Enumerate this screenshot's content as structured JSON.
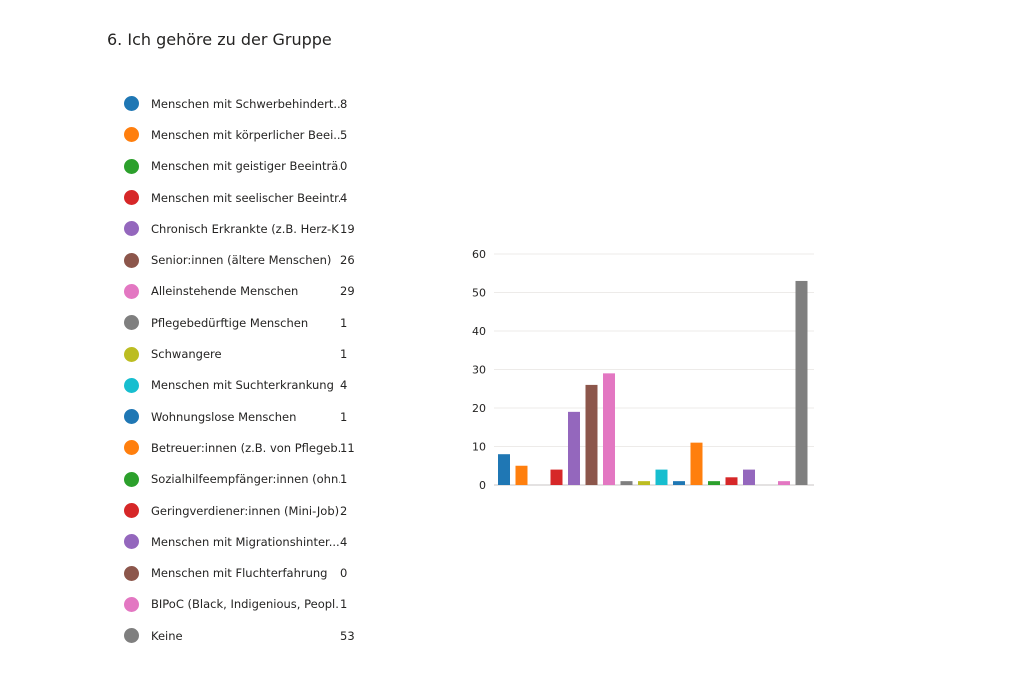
{
  "question": {
    "number": "6.",
    "title": "Ich gehöre zu der Gruppe"
  },
  "legend": [
    {
      "label": "Menschen mit Schwerbehindert...",
      "count": "8",
      "color": "#1f77b4"
    },
    {
      "label": "Menschen mit körperlicher Beei...",
      "count": "5",
      "color": "#ff7f0e"
    },
    {
      "label": "Menschen mit geistiger Beeinträ...",
      "count": "0",
      "color": "#2ca02c"
    },
    {
      "label": "Menschen mit seelischer Beeintr...",
      "count": "4",
      "color": "#d62728"
    },
    {
      "label": "Chronisch Erkrankte (z.B. Herz-K...",
      "count": "19",
      "color": "#9467bd"
    },
    {
      "label": "Senior:innen (ältere Menschen)",
      "count": "26",
      "color": "#8c564b"
    },
    {
      "label": "Alleinstehende Menschen",
      "count": "29",
      "color": "#e377c2"
    },
    {
      "label": "Pflegebedürftige Menschen",
      "count": "1",
      "color": "#7f7f7f"
    },
    {
      "label": "Schwangere",
      "count": "1",
      "color": "#bcbd22"
    },
    {
      "label": "Menschen mit Suchterkrankung",
      "count": "4",
      "color": "#17becf"
    },
    {
      "label": "Wohnungslose Menschen",
      "count": "1",
      "color": "#1f77b4"
    },
    {
      "label": "Betreuer:innen (z.B. von Pflegeb...",
      "count": "11",
      "color": "#ff7f0e"
    },
    {
      "label": "Sozialhilfeempfänger:innen (ohn...",
      "count": "1",
      "color": "#2ca02c"
    },
    {
      "label": "Geringverdiener:innen (Mini-Job)",
      "count": "2",
      "color": "#d62728"
    },
    {
      "label": "Menschen mit Migrationshinter...",
      "count": "4",
      "color": "#9467bd"
    },
    {
      "label": "Menschen mit Fluchterfahrung",
      "count": "0",
      "color": "#8c564b"
    },
    {
      "label": "BIPoC (Black, Indigenious, Peopl...",
      "count": "1",
      "color": "#e377c2"
    },
    {
      "label": "Keine",
      "count": "53",
      "color": "#7f7f7f"
    }
  ],
  "chart_data": {
    "type": "bar",
    "title": "Ich gehöre zu der Gruppe",
    "categories": [
      "Menschen mit Schwerbehindert...",
      "Menschen mit körperlicher Beei...",
      "Menschen mit geistiger Beeinträ...",
      "Menschen mit seelischer Beeintr...",
      "Chronisch Erkrankte (z.B. Herz-K...",
      "Senior:innen (ältere Menschen)",
      "Alleinstehende Menschen",
      "Pflegebedürftige Menschen",
      "Schwangere",
      "Menschen mit Suchterkrankung",
      "Wohnungslose Menschen",
      "Betreuer:innen (z.B. von Pflegeb...",
      "Sozialhilfeempfänger:innen (ohn...",
      "Geringverdiener:innen (Mini-Job)",
      "Menschen mit Migrationshinter...",
      "Menschen mit Fluchterfahrung",
      "BIPoC (Black, Indigenious, Peopl...",
      "Keine"
    ],
    "values": [
      8,
      5,
      0,
      4,
      19,
      26,
      29,
      1,
      1,
      4,
      1,
      11,
      1,
      2,
      4,
      0,
      1,
      53
    ],
    "colors": [
      "#1f77b4",
      "#ff7f0e",
      "#2ca02c",
      "#d62728",
      "#9467bd",
      "#8c564b",
      "#e377c2",
      "#7f7f7f",
      "#bcbd22",
      "#17becf",
      "#1f77b4",
      "#ff7f0e",
      "#2ca02c",
      "#d62728",
      "#9467bd",
      "#8c564b",
      "#e377c2",
      "#7f7f7f"
    ],
    "ylim": [
      0,
      60
    ],
    "yticks": [
      "0",
      "10",
      "20",
      "30",
      "40",
      "50",
      "60"
    ],
    "grid": true,
    "xlabel": "",
    "ylabel": ""
  }
}
